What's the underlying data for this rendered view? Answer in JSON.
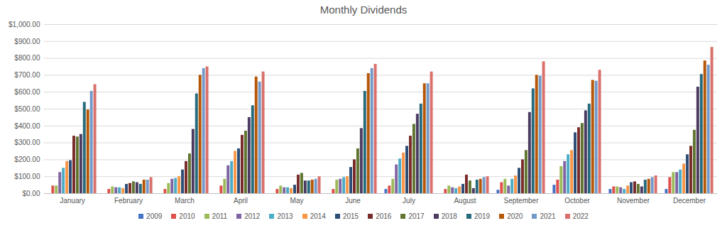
{
  "chart_data": {
    "type": "bar",
    "title": "Monthly Dividends",
    "categories": [
      "January",
      "February",
      "March",
      "April",
      "May",
      "June",
      "July",
      "August",
      "September",
      "October",
      "November",
      "December"
    ],
    "series": [
      {
        "name": "2009",
        "color": "#4472c4",
        "values": [
          null,
          null,
          null,
          null,
          null,
          null,
          25,
          null,
          20,
          50,
          25,
          25
        ]
      },
      {
        "name": "2010",
        "color": "#e0504a",
        "values": [
          45,
          25,
          25,
          45,
          25,
          25,
          45,
          25,
          65,
          80,
          40,
          95
        ]
      },
      {
        "name": "2011",
        "color": "#9bbb59",
        "values": [
          45,
          40,
          60,
          85,
          45,
          80,
          85,
          45,
          85,
          160,
          40,
          125
        ]
      },
      {
        "name": "2012",
        "color": "#8064a2",
        "values": [
          125,
          35,
          85,
          165,
          35,
          85,
          170,
          35,
          45,
          190,
          35,
          125
        ]
      },
      {
        "name": "2013",
        "color": "#4bacc6",
        "values": [
          150,
          35,
          90,
          190,
          35,
          95,
          205,
          30,
          85,
          230,
          25,
          140
        ]
      },
      {
        "name": "2014",
        "color": "#f79646",
        "values": [
          190,
          30,
          100,
          250,
          30,
          100,
          240,
          40,
          105,
          255,
          45,
          175
        ]
      },
      {
        "name": "2015",
        "color": "#2c4d75",
        "values": [
          195,
          55,
          140,
          265,
          50,
          155,
          280,
          55,
          150,
          360,
          65,
          230
        ]
      },
      {
        "name": "2016",
        "color": "#772c2a",
        "values": [
          340,
          60,
          190,
          345,
          110,
          200,
          340,
          110,
          200,
          390,
          70,
          280
        ]
      },
      {
        "name": "2017",
        "color": "#5f7530",
        "values": [
          335,
          70,
          235,
          370,
          120,
          265,
          410,
          75,
          255,
          415,
          55,
          375
        ]
      },
      {
        "name": "2018",
        "color": "#4d3b62",
        "values": [
          350,
          65,
          380,
          450,
          75,
          385,
          470,
          30,
          480,
          490,
          40,
          630
        ]
      },
      {
        "name": "2019",
        "color": "#276a7c",
        "values": [
          540,
          55,
          590,
          520,
          75,
          605,
          530,
          80,
          620,
          530,
          80,
          705
        ]
      },
      {
        "name": "2020",
        "color": "#b65708",
        "values": [
          495,
          80,
          700,
          690,
          80,
          710,
          650,
          85,
          700,
          670,
          85,
          785
        ]
      },
      {
        "name": "2021",
        "color": "#729aca",
        "values": [
          605,
          80,
          740,
          660,
          85,
          740,
          650,
          95,
          695,
          665,
          95,
          760
        ]
      },
      {
        "name": "2022",
        "color": "#d9706b",
        "values": [
          645,
          95,
          750,
          720,
          100,
          765,
          720,
          100,
          780,
          730,
          105,
          865
        ]
      }
    ],
    "ylim": [
      0,
      1000
    ],
    "yticks": [
      {
        "value": 0,
        "label": "$0.00"
      },
      {
        "value": 100,
        "label": "$100.00"
      },
      {
        "value": 200,
        "label": "$200.00"
      },
      {
        "value": 300,
        "label": "$300.00"
      },
      {
        "value": 400,
        "label": "$400.00"
      },
      {
        "value": 500,
        "label": "$500.00"
      },
      {
        "value": 600,
        "label": "$600.00"
      },
      {
        "value": 700,
        "label": "$700.00"
      },
      {
        "value": 800,
        "label": "$800.00"
      },
      {
        "value": 900,
        "label": "$900.00"
      },
      {
        "value": 1000,
        "label": "$1,000.00"
      }
    ],
    "grid": true,
    "legend": "bottom"
  }
}
